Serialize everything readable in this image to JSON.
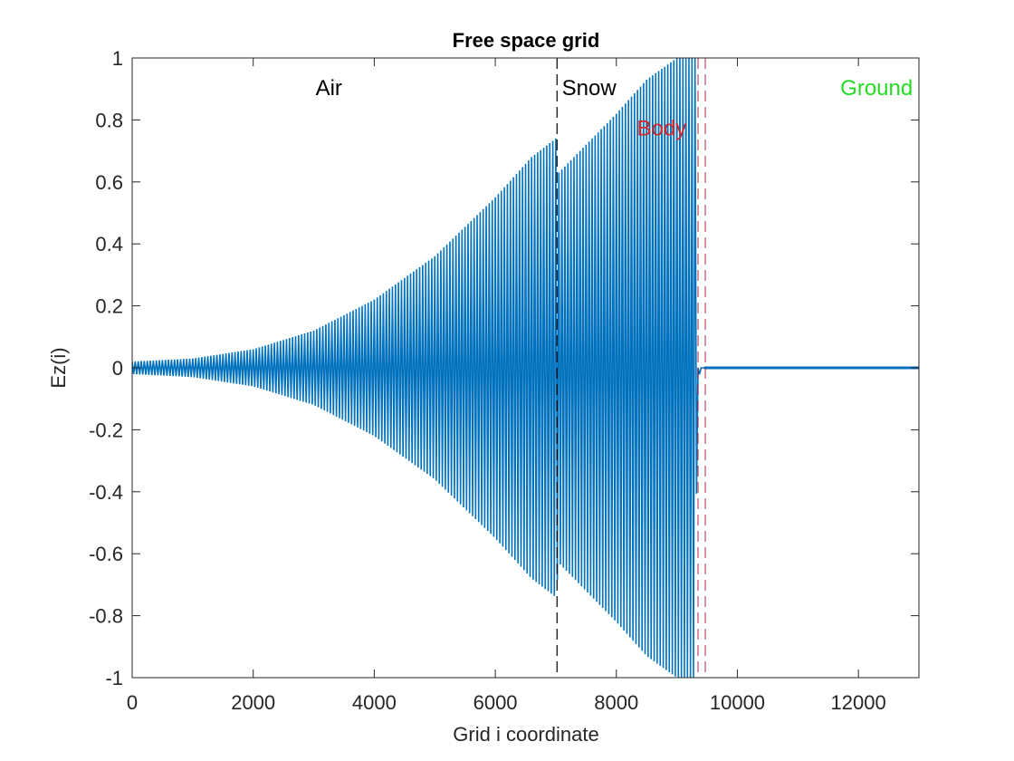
{
  "chart_data": {
    "type": "line",
    "title": "Free space grid",
    "xlabel": "Grid i coordinate",
    "ylabel": "Ez(i)",
    "xlim": [
      0,
      13000
    ],
    "ylim": [
      -1,
      1
    ],
    "grid": false,
    "xticks": [
      0,
      2000,
      4000,
      6000,
      8000,
      10000,
      12000
    ],
    "xtick_labels": [
      "0",
      "2000",
      "4000",
      "6000",
      "8000",
      "10000",
      "12000"
    ],
    "yticks": [
      -1,
      -0.8,
      -0.6,
      -0.4,
      -0.2,
      0,
      0.2,
      0.4,
      0.6,
      0.8,
      1
    ],
    "ytick_labels": [
      "-1",
      "-0.8",
      "-0.6",
      "-0.4",
      "-0.2",
      "0",
      "0.2",
      "0.4",
      "0.6",
      "0.8",
      "1"
    ],
    "series": [
      {
        "color": "#0072BD",
        "style": "oscillating field, envelope amplitude shown",
        "envelope": {
          "x": [
            0,
            1000,
            2000,
            3000,
            4000,
            5000,
            6000,
            6600,
            7000,
            7050,
            7500,
            8000,
            8500,
            9000,
            9300,
            9340,
            9400,
            9450,
            13000
          ],
          "upper": [
            0.02,
            0.03,
            0.06,
            0.12,
            0.22,
            0.36,
            0.55,
            0.68,
            0.74,
            0.63,
            0.72,
            0.82,
            0.93,
            1.0,
            1.0,
            0.0,
            0.0,
            0.0,
            0.0
          ],
          "lower": [
            -0.02,
            -0.03,
            -0.06,
            -0.12,
            -0.22,
            -0.36,
            -0.55,
            -0.68,
            -0.74,
            -0.63,
            -0.72,
            -0.82,
            -0.93,
            -1.0,
            -1.0,
            -0.05,
            0.0,
            0.0,
            0.0
          ]
        }
      }
    ],
    "vertical_lines": [
      {
        "x": 7020,
        "color": "#000000",
        "style": "dashed"
      },
      {
        "x": 9350,
        "color": "#A2142F",
        "style": "dashed"
      },
      {
        "x": 9470,
        "color": "#A2142F",
        "style": "dashed"
      }
    ],
    "annotations": [
      {
        "text": "Air",
        "x": 3250,
        "y": 0.88,
        "color": "#000000"
      },
      {
        "text": "Snow",
        "x": 7550,
        "y": 0.88,
        "color": "#000000"
      },
      {
        "text": "Body",
        "x": 8750,
        "y": 0.75,
        "color": "#D62728"
      },
      {
        "text": "Ground",
        "x": 12300,
        "y": 0.88,
        "color": "#22DD22"
      }
    ]
  }
}
